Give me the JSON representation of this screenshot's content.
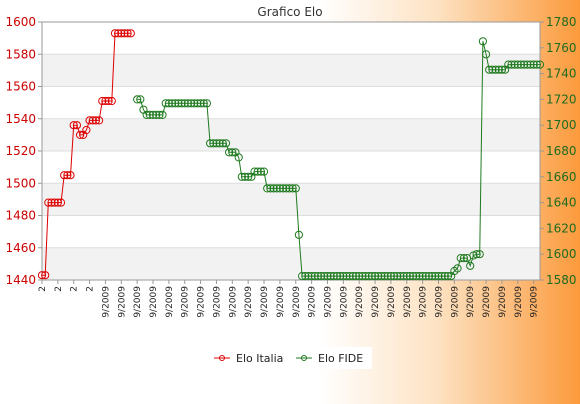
{
  "chart_data": {
    "type": "line",
    "title": "Grafico Elo",
    "x_tick_labels": [
      "2",
      "2",
      "2",
      "2",
      "9/2009",
      "9/2009",
      "9/2009",
      "9/2009",
      "9/2009",
      "9/2009",
      "9/2009",
      "9/2009",
      "9/2009",
      "9/2009",
      "9/2009",
      "9/2009",
      "9/2009",
      "9/2009",
      "9/2009",
      "9/2009",
      "9/2009",
      "9/2009",
      "9/2009",
      "9/2009",
      "9/2009",
      "9/2009",
      "9/2009",
      "9/2009",
      "9/2009",
      "9/2009",
      "9/2009",
      "9/2009"
    ],
    "x_tick_positions": [
      0,
      5,
      10,
      15,
      20,
      25,
      30,
      35,
      40,
      45,
      50,
      55,
      60,
      65,
      70,
      75,
      80,
      85,
      90,
      95,
      100,
      105,
      110,
      115,
      120,
      125,
      130,
      135,
      140,
      145,
      150,
      155
    ],
    "x_range": [
      0,
      157
    ],
    "y_left": {
      "range": [
        1440,
        1600
      ],
      "ticks": [
        1440,
        1460,
        1480,
        1500,
        1520,
        1540,
        1560,
        1580,
        1600
      ],
      "color": "#cc0000"
    },
    "y_right": {
      "range": [
        1580,
        1780
      ],
      "ticks": [
        1580,
        1600,
        1620,
        1640,
        1660,
        1680,
        1700,
        1720,
        1740,
        1760,
        1780
      ],
      "color": "#1f6b1f"
    },
    "grid": true,
    "legend_position": "bottom",
    "series": [
      {
        "name": "Elo Italia",
        "axis": "left",
        "color": "#dd0000",
        "points": [
          [
            0,
            1443
          ],
          [
            1,
            1443
          ],
          [
            2,
            1488
          ],
          [
            3,
            1488
          ],
          [
            4,
            1488
          ],
          [
            5,
            1488
          ],
          [
            6,
            1488
          ],
          [
            7,
            1505
          ],
          [
            8,
            1505
          ],
          [
            9,
            1505
          ],
          [
            10,
            1536
          ],
          [
            11,
            1536
          ],
          [
            12,
            1530
          ],
          [
            13,
            1530
          ],
          [
            14,
            1533
          ],
          [
            15,
            1539
          ],
          [
            16,
            1539
          ],
          [
            17,
            1539
          ],
          [
            18,
            1539
          ],
          [
            19,
            1551
          ],
          [
            20,
            1551
          ],
          [
            21,
            1551
          ],
          [
            22,
            1551
          ],
          [
            23,
            1593
          ],
          [
            24,
            1593
          ],
          [
            25,
            1593
          ],
          [
            26,
            1593
          ],
          [
            27,
            1593
          ],
          [
            28,
            1593
          ]
        ]
      },
      {
        "name": "Elo FIDE",
        "axis": "right",
        "color": "#1f7a1f",
        "points": [
          [
            30,
            1720
          ],
          [
            31,
            1720
          ],
          [
            32,
            1712
          ],
          [
            33,
            1708
          ],
          [
            34,
            1708
          ],
          [
            35,
            1708
          ],
          [
            36,
            1708
          ],
          [
            37,
            1708
          ],
          [
            38,
            1708
          ],
          [
            39,
            1717
          ],
          [
            40,
            1717
          ],
          [
            41,
            1717
          ],
          [
            42,
            1717
          ],
          [
            43,
            1717
          ],
          [
            44,
            1717
          ],
          [
            45,
            1717
          ],
          [
            46,
            1717
          ],
          [
            47,
            1717
          ],
          [
            48,
            1717
          ],
          [
            49,
            1717
          ],
          [
            50,
            1717
          ],
          [
            51,
            1717
          ],
          [
            52,
            1717
          ],
          [
            53,
            1686
          ],
          [
            54,
            1686
          ],
          [
            55,
            1686
          ],
          [
            56,
            1686
          ],
          [
            57,
            1686
          ],
          [
            58,
            1686
          ],
          [
            59,
            1679
          ],
          [
            60,
            1679
          ],
          [
            61,
            1679
          ],
          [
            62,
            1675
          ],
          [
            63,
            1660
          ],
          [
            64,
            1660
          ],
          [
            65,
            1660
          ],
          [
            66,
            1660
          ],
          [
            67,
            1664
          ],
          [
            68,
            1664
          ],
          [
            69,
            1664
          ],
          [
            70,
            1664
          ],
          [
            71,
            1651
          ],
          [
            72,
            1651
          ],
          [
            73,
            1651
          ],
          [
            74,
            1651
          ],
          [
            75,
            1651
          ],
          [
            76,
            1651
          ],
          [
            77,
            1651
          ],
          [
            78,
            1651
          ],
          [
            79,
            1651
          ],
          [
            80,
            1651
          ],
          [
            81,
            1615
          ],
          [
            82,
            1583
          ],
          [
            83,
            1583
          ],
          [
            84,
            1583
          ],
          [
            85,
            1583
          ],
          [
            86,
            1583
          ],
          [
            87,
            1583
          ],
          [
            88,
            1583
          ],
          [
            89,
            1583
          ],
          [
            90,
            1583
          ],
          [
            91,
            1583
          ],
          [
            92,
            1583
          ],
          [
            93,
            1583
          ],
          [
            94,
            1583
          ],
          [
            95,
            1583
          ],
          [
            96,
            1583
          ],
          [
            97,
            1583
          ],
          [
            98,
            1583
          ],
          [
            99,
            1583
          ],
          [
            100,
            1583
          ],
          [
            101,
            1583
          ],
          [
            102,
            1583
          ],
          [
            103,
            1583
          ],
          [
            104,
            1583
          ],
          [
            105,
            1583
          ],
          [
            106,
            1583
          ],
          [
            107,
            1583
          ],
          [
            108,
            1583
          ],
          [
            109,
            1583
          ],
          [
            110,
            1583
          ],
          [
            111,
            1583
          ],
          [
            112,
            1583
          ],
          [
            113,
            1583
          ],
          [
            114,
            1583
          ],
          [
            115,
            1583
          ],
          [
            116,
            1583
          ],
          [
            117,
            1583
          ],
          [
            118,
            1583
          ],
          [
            119,
            1583
          ],
          [
            120,
            1583
          ],
          [
            121,
            1583
          ],
          [
            122,
            1583
          ],
          [
            123,
            1583
          ],
          [
            124,
            1583
          ],
          [
            125,
            1583
          ],
          [
            126,
            1583
          ],
          [
            127,
            1583
          ],
          [
            128,
            1583
          ],
          [
            129,
            1583
          ],
          [
            130,
            1587
          ],
          [
            131,
            1589
          ],
          [
            132,
            1597
          ],
          [
            133,
            1597
          ],
          [
            134,
            1597
          ],
          [
            135,
            1591
          ],
          [
            136,
            1599
          ],
          [
            137,
            1600
          ],
          [
            138,
            1600
          ],
          [
            139,
            1765
          ],
          [
            140,
            1755
          ],
          [
            141,
            1743
          ],
          [
            142,
            1743
          ],
          [
            143,
            1743
          ],
          [
            144,
            1743
          ],
          [
            145,
            1743
          ],
          [
            146,
            1743
          ],
          [
            147,
            1747
          ],
          [
            148,
            1747
          ],
          [
            149,
            1747
          ],
          [
            150,
            1747
          ],
          [
            151,
            1747
          ],
          [
            152,
            1747
          ],
          [
            153,
            1747
          ],
          [
            154,
            1747
          ],
          [
            155,
            1747
          ],
          [
            156,
            1747
          ],
          [
            157,
            1747
          ]
        ]
      }
    ]
  }
}
